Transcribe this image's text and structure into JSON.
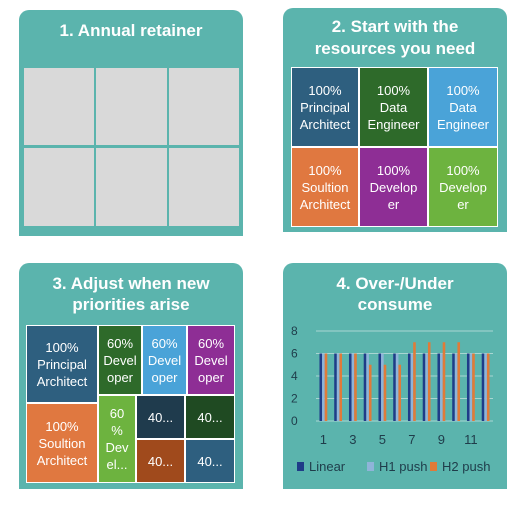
{
  "panels": {
    "p1": {
      "title": "1. Annual retainer"
    },
    "p2": {
      "title_line1": "2. Start with the",
      "title_line2": "resources you need"
    },
    "p3": {
      "title_line1": "3. Adjust when new",
      "title_line2": "priorities arise"
    },
    "p4": {
      "title_line1": "4. Over-/Under",
      "title_line2": "consume"
    }
  },
  "panel2_tiles": [
    {
      "l1": "100%",
      "l2": "Principal",
      "l3": "Architect",
      "color": "#2e5f7f"
    },
    {
      "l1": "100%",
      "l2": "Data",
      "l3": "Engineer",
      "color": "#2e6a2a"
    },
    {
      "l1": "100%",
      "l2": "Data",
      "l3": "Engineer",
      "color": "#4aa3d8"
    },
    {
      "l1": "100%",
      "l2": "Soultion",
      "l3": "Architect",
      "color": "#e07840"
    },
    {
      "l1": "100%",
      "l2": "Develop",
      "l3": "er",
      "color": "#8e2e95"
    },
    {
      "l1": "100%",
      "l2": "Develop",
      "l3": "er",
      "color": "#6db33f"
    }
  ],
  "panel3_tiles": {
    "principal": {
      "l1": "100%",
      "l2": "Principal",
      "l3": "Architect",
      "color": "#2e5f7f"
    },
    "solution": {
      "l1": "100%",
      "l2": "Soultion",
      "l3": "Architect",
      "color": "#e07840"
    },
    "dev_green": {
      "l1": "60%",
      "l2": "Devel",
      "l3": "oper",
      "color": "#2e6a2a"
    },
    "dev_blue": {
      "l1": "60%",
      "l2": "Devel",
      "l3": "oper",
      "color": "#4aa3d8"
    },
    "dev_purple": {
      "l1": "60%",
      "l2": "Devel",
      "l3": "oper",
      "color": "#8e2e95"
    },
    "dev_lime": {
      "l1": "60",
      "l2": "%",
      "l3": "Dev",
      "l4": "el...",
      "color": "#6db33f"
    },
    "small1": {
      "label": "40...",
      "color": "#1f3b4d"
    },
    "small2": {
      "label": "40...",
      "color": "#1f4a22"
    },
    "small3": {
      "label": "40...",
      "color": "#a04a1c"
    },
    "small4": {
      "label": "40...",
      "color": "#2e5f7f"
    }
  },
  "chart_data": {
    "type": "bar",
    "categories": [
      "1",
      "2",
      "3",
      "4",
      "5",
      "6",
      "7",
      "8",
      "9",
      "10",
      "11",
      "12"
    ],
    "x_tick_labels": [
      "1",
      "3",
      "5",
      "7",
      "9",
      "11"
    ],
    "series": [
      {
        "name": "Linear",
        "color": "#1f3c88",
        "values": [
          6,
          6,
          6,
          6,
          6,
          6,
          6,
          6,
          6,
          6,
          6,
          6
        ]
      },
      {
        "name": "H1 push",
        "color": "#8fb4d9",
        "values": [
          6,
          6,
          6,
          6,
          6,
          6,
          6,
          6,
          6,
          6,
          6,
          6
        ]
      },
      {
        "name": "H2 push",
        "color": "#e07b39",
        "values": [
          6,
          6,
          6,
          5,
          5,
          5,
          7,
          7,
          7,
          7,
          6,
          6
        ]
      }
    ],
    "ylim": [
      0,
      8
    ],
    "y_ticks": [
      "0",
      "2",
      "4",
      "6",
      "8"
    ],
    "legend_position": "bottom",
    "grid": true
  }
}
